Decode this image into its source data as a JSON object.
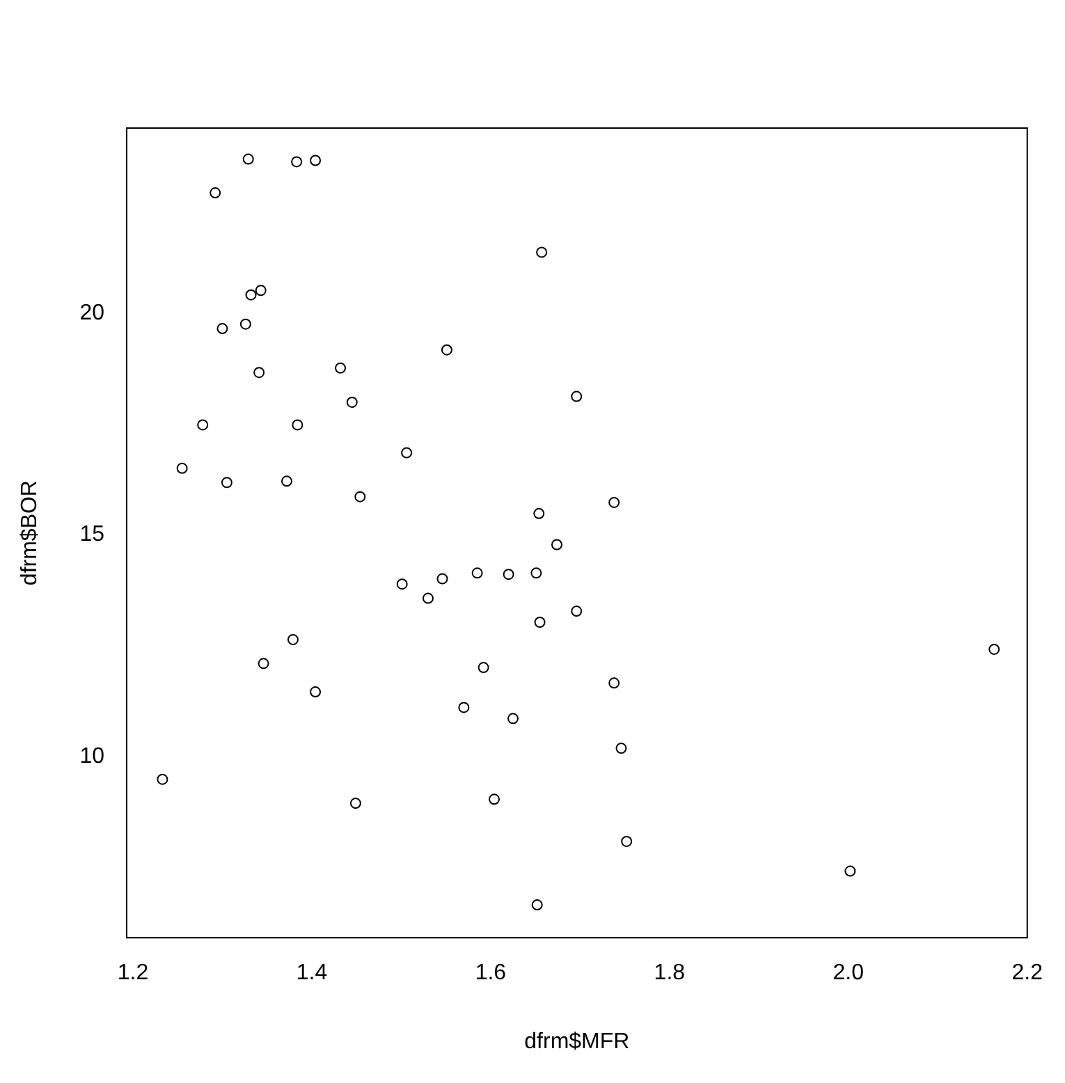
{
  "chart_data": {
    "type": "scatter",
    "xlabel": "dfrm$MFR",
    "ylabel": "dfrm$BOR",
    "x": [
      1.329,
      1.383,
      1.404,
      1.292,
      1.657,
      1.332,
      1.343,
      1.3,
      1.326,
      1.551,
      1.432,
      1.341,
      1.696,
      1.445,
      1.278,
      1.384,
      1.255,
      1.506,
      1.305,
      1.372,
      1.454,
      1.654,
      1.738,
      1.674,
      1.501,
      1.546,
      1.585,
      1.62,
      1.651,
      1.53,
      1.696,
      1.655,
      1.379,
      1.346,
      1.592,
      1.738,
      2.163,
      1.404,
      1.57,
      1.625,
      1.746,
      1.233,
      1.449,
      1.604,
      1.752,
      2.002,
      1.652
    ],
    "values": [
      23.47,
      23.41,
      23.44,
      22.71,
      21.37,
      20.41,
      20.51,
      19.65,
      19.75,
      19.17,
      18.76,
      18.66,
      18.12,
      17.99,
      17.48,
      17.48,
      16.5,
      16.85,
      16.18,
      16.21,
      15.86,
      15.48,
      15.73,
      14.78,
      13.89,
      14.01,
      14.14,
      14.11,
      14.14,
      13.57,
      13.28,
      13.03,
      12.64,
      12.1,
      12.01,
      11.66,
      12.42,
      11.46,
      11.11,
      10.86,
      10.19,
      9.49,
      8.95,
      9.04,
      8.09,
      7.42,
      6.66
    ],
    "color": "#000000",
    "marker": "circle",
    "xlim": [
      1.193,
      2.2
    ],
    "xticks": [
      1.2,
      1.4,
      1.6,
      1.8,
      {
        "value": 2,
        "label": "2.0"
      },
      2.2
    ],
    "ylim": [
      5.92,
      24.17
    ],
    "yticks": [
      10,
      15,
      20
    ],
    "grid": false,
    "legend": false
  }
}
